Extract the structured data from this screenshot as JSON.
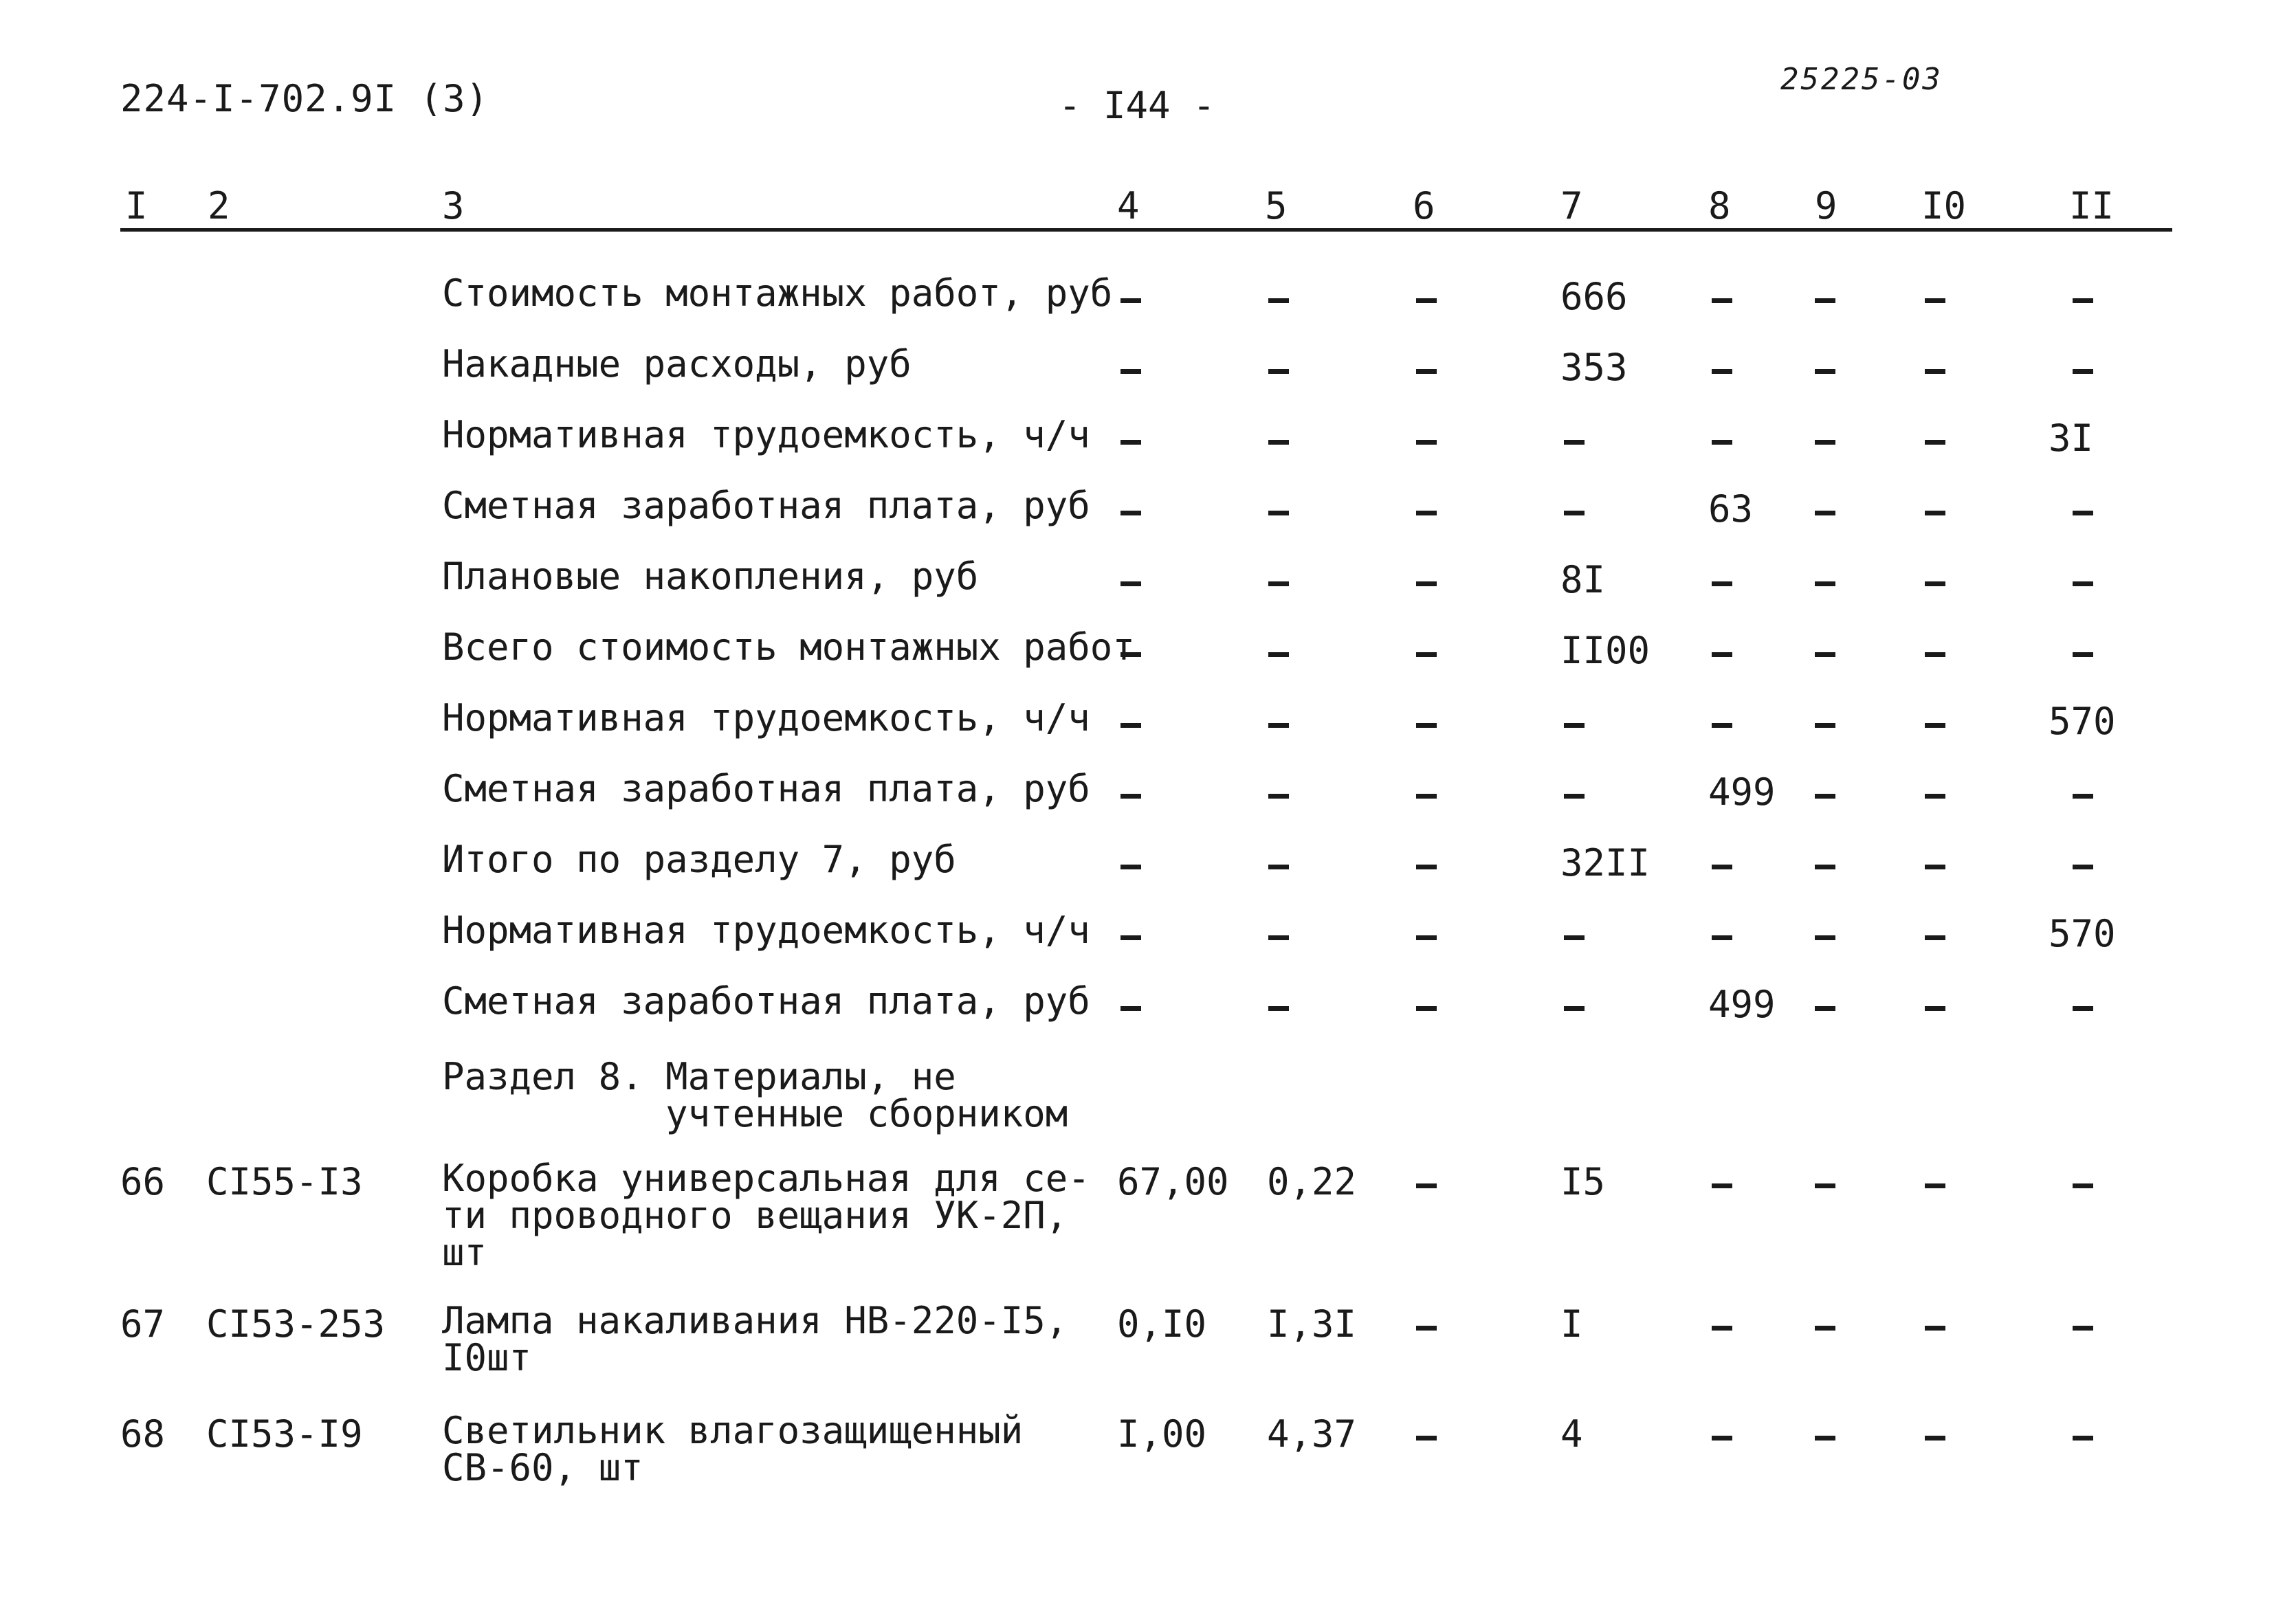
{
  "header": {
    "doc_code": "224-I-702.9I (3)",
    "page_number": "- I44 -",
    "archive_number": "25225-03"
  },
  "columns": [
    "I",
    "2",
    "3",
    "4",
    "5",
    "6",
    "7",
    "8",
    "9",
    "I0",
    "II"
  ],
  "rows": [
    {
      "n": "",
      "code": "",
      "desc": "Стоимость монтажных работ, руб",
      "c4": "–",
      "c5": "–",
      "c6": "–",
      "c7": "666",
      "c8": "–",
      "c9": "–",
      "c10": "–",
      "c11": "–"
    },
    {
      "n": "",
      "code": "",
      "desc": "Накадные расходы, руб",
      "c4": "–",
      "c5": "–",
      "c6": "–",
      "c7": "353",
      "c8": "–",
      "c9": "–",
      "c10": "–",
      "c11": "–"
    },
    {
      "n": "",
      "code": "",
      "desc": "Нормативная трудоемкость, ч/ч",
      "c4": "–",
      "c5": "–",
      "c6": "–",
      "c7": "–",
      "c8": "–",
      "c9": "–",
      "c10": "–",
      "c11": "3I"
    },
    {
      "n": "",
      "code": "",
      "desc": "Сметная заработная плата, руб",
      "c4": "–",
      "c5": "–",
      "c6": "–",
      "c7": "–",
      "c8": "63",
      "c9": "–",
      "c10": "–",
      "c11": "–"
    },
    {
      "n": "",
      "code": "",
      "desc": "Плановые накопления, руб",
      "c4": "–",
      "c5": "–",
      "c6": "–",
      "c7": "8I",
      "c8": "–",
      "c9": "–",
      "c10": "–",
      "c11": "–"
    },
    {
      "n": "",
      "code": "",
      "desc": "Всего стоимость монтажных работ",
      "c4": "–",
      "c5": "–",
      "c6": "–",
      "c7": "II00",
      "c8": "–",
      "c9": "–",
      "c10": "–",
      "c11": "–"
    },
    {
      "n": "",
      "code": "",
      "desc": "Нормативная трудоемкость, ч/ч",
      "c4": "–",
      "c5": "–",
      "c6": "–",
      "c7": "–",
      "c8": "–",
      "c9": "–",
      "c10": "–",
      "c11": "570"
    },
    {
      "n": "",
      "code": "",
      "desc": "Сметная заработная плата, руб",
      "c4": "–",
      "c5": "–",
      "c6": "–",
      "c7": "–",
      "c8": "499",
      "c9": "–",
      "c10": "–",
      "c11": "–"
    },
    {
      "n": "",
      "code": "",
      "desc": "Итого по разделу 7, руб",
      "c4": "–",
      "c5": "–",
      "c6": "–",
      "c7": "32II",
      "c8": "–",
      "c9": "–",
      "c10": "–",
      "c11": "–"
    },
    {
      "n": "",
      "code": "",
      "desc": "Нормативная трудоемкость, ч/ч",
      "c4": "–",
      "c5": "–",
      "c6": "–",
      "c7": "–",
      "c8": "–",
      "c9": "–",
      "c10": "–",
      "c11": "570"
    },
    {
      "n": "",
      "code": "",
      "desc": "Сметная заработная плата, руб",
      "c4": "–",
      "c5": "–",
      "c6": "–",
      "c7": "–",
      "c8": "499",
      "c9": "–",
      "c10": "–",
      "c11": "–"
    },
    {
      "n": "",
      "code": "",
      "desc": "Раздел 8. Материалы, не\n          учтенные сборником",
      "c4": "",
      "c5": "",
      "c6": "",
      "c7": "",
      "c8": "",
      "c9": "",
      "c10": "",
      "c11": ""
    },
    {
      "n": "66",
      "code": "CI55-I3",
      "desc": "Коробка универсальная для се-\nти проводного вещания УК-2П,\nшт",
      "c4": "67,00",
      "c5": "0,22",
      "c6": "–",
      "c7": "I5",
      "c8": "–",
      "c9": "–",
      "c10": "–",
      "c11": "–"
    },
    {
      "n": "67",
      "code": "CI53-253",
      "desc": "Лампа накаливания НВ-220-I5,\nI0шт",
      "c4": "0,I0",
      "c5": "I,3I",
      "c6": "–",
      "c7": "I",
      "c8": "–",
      "c9": "–",
      "c10": "–",
      "c11": "–"
    },
    {
      "n": "68",
      "code": "CI53-I9",
      "desc": "Светильник влагозащищенный\nСВ-60, шт",
      "c4": "I,00",
      "c5": "4,37",
      "c6": "–",
      "c7": "4",
      "c8": "–",
      "c9": "–",
      "c10": "–",
      "c11": "–"
    }
  ]
}
